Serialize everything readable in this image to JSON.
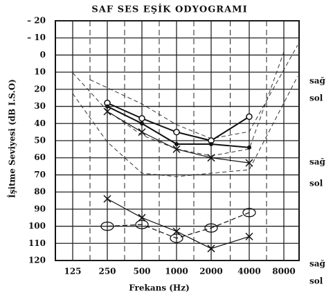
{
  "chart_data": {
    "type": "line",
    "title": "SAF SES EŞİK ODYOGRAMI",
    "x_label": "Frekans (Hz)",
    "y_label": "İşitme Seviyesi (dB I.S.O)",
    "categories": [
      "125",
      "250",
      "500",
      "1000",
      "2000",
      "4000",
      "8000"
    ],
    "ylim": [
      -20,
      120
    ],
    "y_inverted": true,
    "yticks": [
      {
        "value": -20,
        "label": "– 20"
      },
      {
        "value": -10,
        "label": "– 10"
      },
      0,
      10,
      20,
      30,
      40,
      50,
      60,
      70,
      80,
      90,
      100,
      110,
      120
    ],
    "grid": true,
    "side_labels": [
      "sağ",
      "sol",
      "sağ",
      "sol",
      "sağ",
      "sol"
    ],
    "series": [
      {
        "marker": "circle",
        "color": "#111",
        "values": [
          null,
          28,
          37,
          45,
          50,
          36,
          null
        ]
      },
      {
        "marker": "cross",
        "color": "#111",
        "values": [
          null,
          33,
          45,
          55,
          60,
          63,
          null
        ]
      },
      {
        "marker": "dot",
        "color": "#111",
        "values": [
          null,
          30,
          40,
          52,
          52,
          54,
          null
        ]
      },
      {
        "marker": "ring",
        "color": "#111",
        "values": [
          null,
          100,
          99,
          107,
          101,
          92,
          null
        ]
      },
      {
        "marker": "cross",
        "color": "#111",
        "values": [
          null,
          84,
          95,
          103,
          113,
          106,
          null
        ]
      }
    ]
  }
}
